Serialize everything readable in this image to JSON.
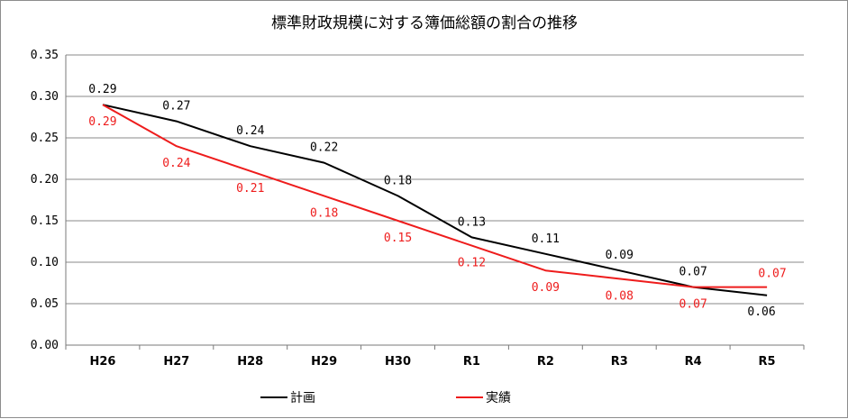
{
  "chart_data": {
    "type": "line",
    "title": "標準財政規模に対する簿価総額の割合の推移",
    "xlabel": "",
    "ylabel": "",
    "categories": [
      "H26",
      "H27",
      "H28",
      "H29",
      "H30",
      "R1",
      "R2",
      "R3",
      "R4",
      "R5"
    ],
    "ylim": [
      0,
      0.35
    ],
    "yticks": [
      "0.00",
      "0.05",
      "0.10",
      "0.15",
      "0.20",
      "0.25",
      "0.30",
      "0.35"
    ],
    "grid": true,
    "legend": "bottom",
    "series": [
      {
        "name": "計画",
        "color": "#000000",
        "values": [
          0.29,
          0.27,
          0.24,
          0.22,
          0.18,
          0.13,
          0.11,
          0.09,
          0.07,
          0.06
        ],
        "labels": [
          "0.29",
          "0.27",
          "0.24",
          "0.22",
          "0.18",
          "0.13",
          "0.11",
          "0.09",
          "0.07",
          "0.06"
        ]
      },
      {
        "name": "実績",
        "color": "#ee1c1c",
        "values": [
          0.29,
          0.24,
          0.21,
          0.18,
          0.15,
          0.12,
          0.09,
          0.08,
          0.07,
          0.07
        ],
        "labels": [
          "0.29",
          "0.24",
          "0.21",
          "0.18",
          "0.15",
          "0.12",
          "0.09",
          "0.08",
          "0.07",
          "0.07"
        ]
      }
    ]
  }
}
